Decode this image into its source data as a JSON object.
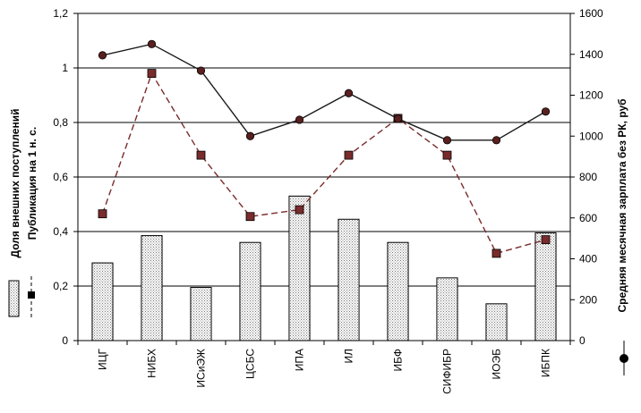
{
  "chart_data": {
    "type": "bar+line",
    "categories": [
      "ИЦГ",
      "НИБХ",
      "ИСиЭЖ",
      "ЦСБС",
      "ИПА",
      "ИЛ",
      "ИБФ",
      "СИФИБР",
      "ИОЭБ",
      "ИБПК"
    ],
    "ylabel_left": [
      "Доля внешних поступлений",
      "Публикация на 1 н. с."
    ],
    "ylabel_right": "Средняя месячная зарплата без РК, руб",
    "ylim_left": [
      0,
      1.2
    ],
    "yticks_left": [
      "0",
      "0,2",
      "0,4",
      "0,6",
      "0,8",
      "1",
      "1,2"
    ],
    "ylim_right": [
      0,
      1600
    ],
    "yticks_right": [
      "0",
      "200",
      "400",
      "600",
      "800",
      "1000",
      "1200",
      "1400",
      "1600"
    ],
    "grid": "horizontal",
    "legend_placement": "left and right outside",
    "series": [
      {
        "kind": "bar",
        "axis": "left",
        "color": "#cccccc",
        "values": [
          0.285,
          0.385,
          0.195,
          0.36,
          0.53,
          0.445,
          0.36,
          0.23,
          0.135,
          0.395
        ]
      },
      {
        "kind": "line",
        "axis": "left",
        "style": "dashed",
        "marker": "square",
        "color": "#7a2b2b",
        "values": [
          0.465,
          0.98,
          0.68,
          0.455,
          0.48,
          0.68,
          0.815,
          0.68,
          0.32,
          0.37
        ]
      },
      {
        "kind": "line",
        "axis": "right",
        "style": "solid",
        "marker": "circle",
        "color": "#1a1a1a",
        "values": [
          1395,
          1450,
          1320,
          1000,
          1080,
          1210,
          1085,
          980,
          980,
          1120
        ]
      }
    ]
  }
}
